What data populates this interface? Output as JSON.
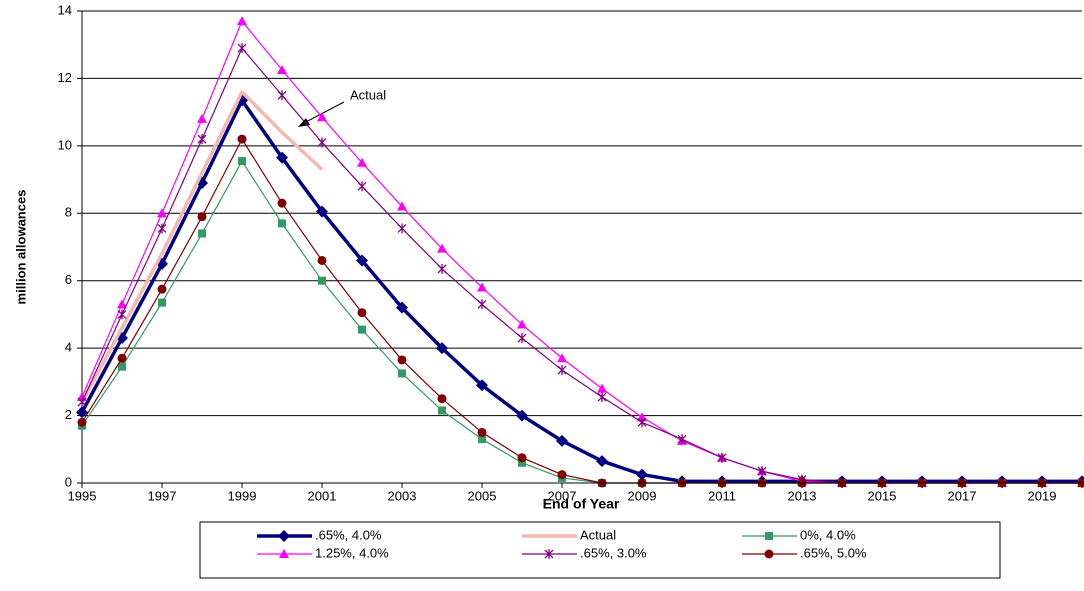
{
  "chart_data": {
    "type": "line",
    "y_label": "million allowances",
    "x_label": "End of Year",
    "annotation": "Actual",
    "x": [
      1995,
      1996,
      1997,
      1998,
      1999,
      2000,
      2001,
      2002,
      2003,
      2004,
      2005,
      2006,
      2007,
      2008,
      2009,
      2010,
      2011,
      2012,
      2013,
      2014,
      2015,
      2016,
      2017,
      2018,
      2019,
      2020
    ],
    "xlim": [
      1995,
      2020
    ],
    "xticks": [
      1995,
      1997,
      1999,
      2001,
      2003,
      2005,
      2007,
      2009,
      2011,
      2013,
      2015,
      2017,
      2019
    ],
    "ylim": [
      0,
      14
    ],
    "yticks": [
      0,
      2,
      4,
      6,
      8,
      10,
      12,
      14
    ],
    "grid": true,
    "series": [
      {
        "name": ".65%, 4.0%",
        "color": "#000080",
        "marker": "diamond",
        "width": 3.5,
        "values": [
          2.1,
          4.3,
          6.5,
          8.9,
          11.35,
          9.65,
          8.05,
          6.6,
          5.2,
          4.0,
          2.9,
          2.0,
          1.25,
          0.65,
          0.25,
          0.05,
          0.05,
          0.05,
          0.05,
          0.05,
          0.05,
          0.05,
          0.05,
          0.05,
          0.05,
          0.05
        ]
      },
      {
        "name": "Actual",
        "color": "#f4b8b0",
        "marker": "none",
        "width": 3.5,
        "values": [
          2.4,
          4.6,
          6.8,
          9.2,
          11.6,
          10.4,
          9.3,
          null,
          null,
          null,
          null,
          null,
          null,
          null,
          null,
          null,
          null,
          null,
          null,
          null,
          null,
          null,
          null,
          null,
          null,
          null
        ]
      },
      {
        "name": "0%, 4.0%",
        "color": "#339966",
        "marker": "square",
        "width": 1.2,
        "values": [
          1.7,
          3.45,
          5.35,
          7.4,
          9.55,
          7.7,
          6.0,
          4.55,
          3.25,
          2.15,
          1.3,
          0.6,
          0.15,
          0,
          0,
          0,
          0,
          0,
          0,
          0,
          0,
          0,
          0,
          0,
          0,
          0
        ]
      },
      {
        "name": "1.25%, 4.0%",
        "color": "#ff00ff",
        "marker": "triangle",
        "width": 1.2,
        "values": [
          2.55,
          5.3,
          8.0,
          10.8,
          13.7,
          12.25,
          10.85,
          9.5,
          8.2,
          6.95,
          5.8,
          4.7,
          3.7,
          2.8,
          1.95,
          1.25,
          0.75,
          0.35,
          0.05,
          0,
          0,
          0,
          0,
          0,
          0,
          0
        ]
      },
      {
        "name": ".65%, 3.0%",
        "color": "#800080",
        "marker": "star",
        "width": 1.2,
        "values": [
          2.4,
          5.0,
          7.55,
          10.2,
          12.9,
          11.5,
          10.1,
          8.8,
          7.55,
          6.35,
          5.3,
          4.3,
          3.35,
          2.55,
          1.8,
          1.3,
          0.75,
          0.35,
          0.1,
          0,
          0,
          0,
          0,
          0,
          0,
          0
        ]
      },
      {
        "name": ".65%, 5.0%",
        "color": "#800000",
        "marker": "circle",
        "width": 1.2,
        "values": [
          1.8,
          3.7,
          5.75,
          7.9,
          10.2,
          8.3,
          6.6,
          5.05,
          3.65,
          2.5,
          1.5,
          0.75,
          0.25,
          0,
          0,
          0,
          0,
          0,
          0,
          0,
          0,
          0,
          0,
          0,
          0,
          0
        ]
      }
    ]
  }
}
